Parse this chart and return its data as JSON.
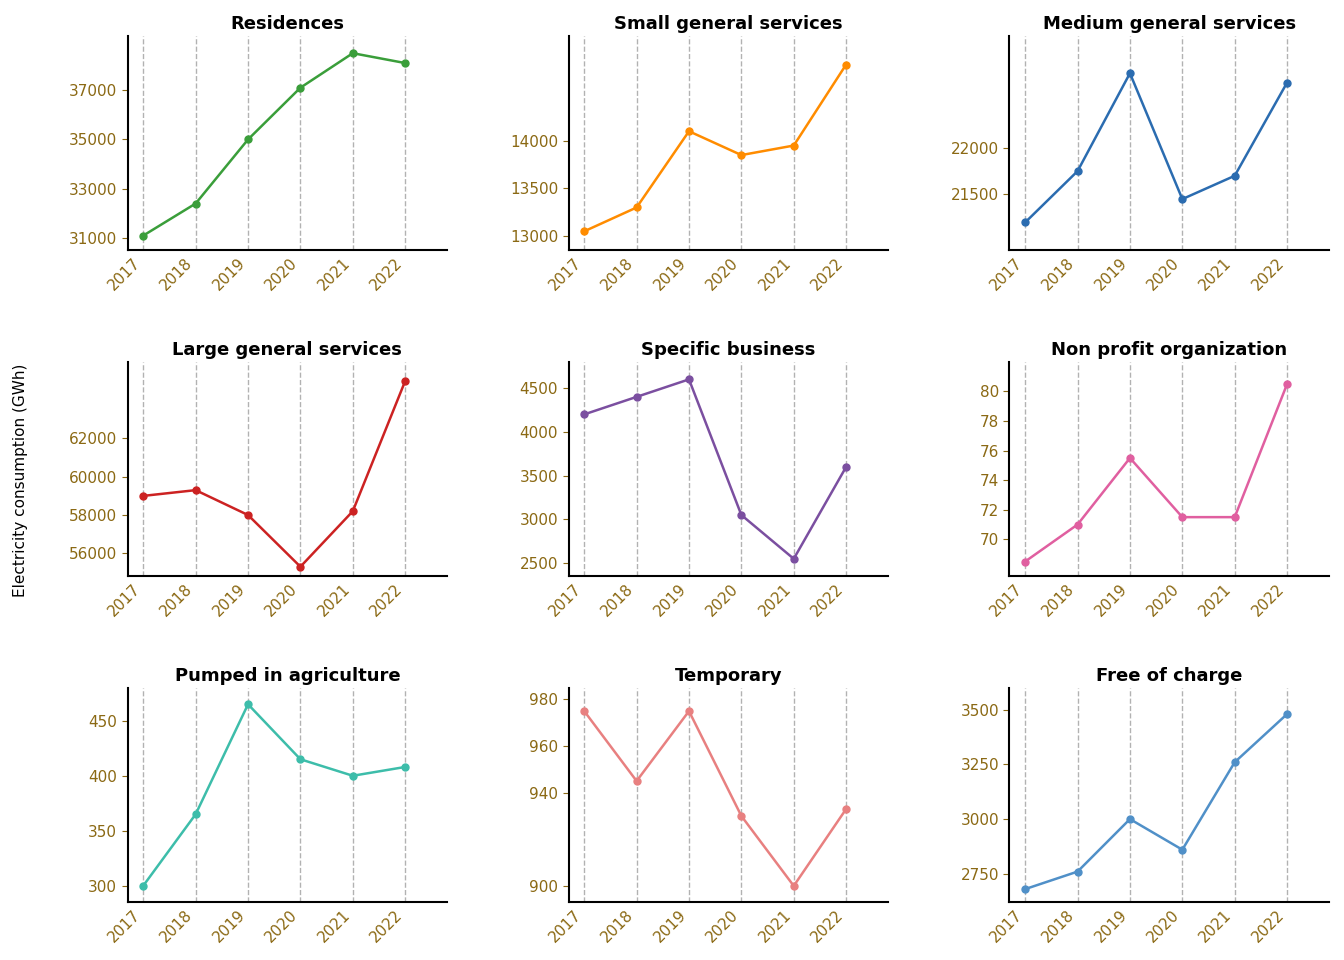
{
  "years": [
    2017,
    2018,
    2019,
    2020,
    2021,
    2022
  ],
  "subplots": [
    {
      "title": "Residences",
      "color": "#3a9e3a",
      "values": [
        31100,
        32400,
        35000,
        37100,
        38500,
        38100
      ]
    },
    {
      "title": "Small general services",
      "color": "#ff8c00",
      "values": [
        13050,
        13300,
        14100,
        13850,
        13950,
        14800
      ]
    },
    {
      "title": "Medium general services",
      "color": "#2b6cb0",
      "values": [
        21200,
        21750,
        22800,
        21450,
        21700,
        22700
      ]
    },
    {
      "title": "Large general services",
      "color": "#cc2222",
      "values": [
        59000,
        59300,
        58000,
        55300,
        58200,
        65000
      ]
    },
    {
      "title": "Specific business",
      "color": "#7b4fa0",
      "values": [
        4200,
        4400,
        4600,
        3050,
        2550,
        3600
      ]
    },
    {
      "title": "Non profit organization",
      "color": "#e05fa0",
      "values": [
        68.5,
        71,
        75.5,
        71.5,
        71.5,
        80.5
      ]
    },
    {
      "title": "Pumped in agriculture",
      "color": "#3dbdaa",
      "values": [
        300,
        365,
        465,
        415,
        400,
        408
      ]
    },
    {
      "title": "Temporary",
      "color": "#e88080",
      "values": [
        975,
        945,
        975,
        930,
        900,
        933
      ]
    },
    {
      "title": "Free of charge",
      "color": "#5090c8",
      "values": [
        2680,
        2760,
        3000,
        2860,
        3260,
        3480
      ]
    }
  ],
  "ylabel": "Electricity consumption (GWh)",
  "tick_color": "#8B6914",
  "background_color": "#ffffff",
  "title_fontsize": 13,
  "label_fontsize": 11,
  "tick_fontsize": 11,
  "ytick_specs": [
    {
      "ticks": [
        31000,
        33000,
        35000,
        37000
      ],
      "ylim": [
        30500,
        39200
      ]
    },
    {
      "ticks": [
        13000,
        13500,
        14000
      ],
      "ylim": [
        12850,
        15100
      ]
    },
    {
      "ticks": [
        21500,
        22000
      ],
      "ylim": [
        20900,
        23200
      ]
    },
    {
      "ticks": [
        56000,
        58000,
        60000,
        62000
      ],
      "ylim": [
        54800,
        66000
      ]
    },
    {
      "ticks": [
        2500,
        3000,
        3500,
        4000,
        4500
      ],
      "ylim": [
        2350,
        4800
      ]
    },
    {
      "ticks": [
        70,
        72,
        74,
        76,
        78,
        80
      ],
      "ylim": [
        67.5,
        82
      ]
    },
    {
      "ticks": [
        300,
        350,
        400,
        450
      ],
      "ylim": [
        285,
        480
      ]
    },
    {
      "ticks": [
        900,
        940,
        960,
        980
      ],
      "ylim": [
        893,
        985
      ]
    },
    {
      "ticks": [
        2750,
        3000,
        3250,
        3500
      ],
      "ylim": [
        2620,
        3600
      ]
    }
  ]
}
